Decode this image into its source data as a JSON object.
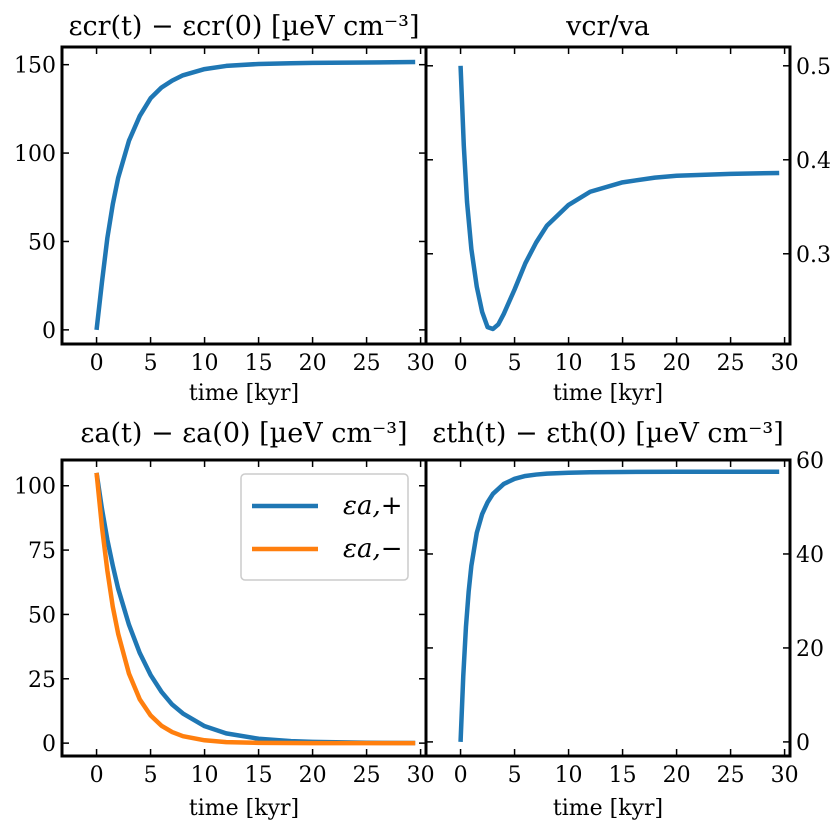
{
  "colors": {
    "blue": "#1f77b4",
    "orange": "#ff7f0e",
    "axis": "#000000"
  },
  "chart_data": [
    {
      "id": "p1",
      "type": "line",
      "title": "εcr(t) − εcr(0) [µeV cm⁻³]",
      "xlabel": "time [kyr]",
      "ylabel": "",
      "xlim": [
        -3.2,
        30.5
      ],
      "ylim": [
        -8,
        160
      ],
      "y_axis_side": "left",
      "xticks": [
        "0",
        "5",
        "10",
        "15",
        "20",
        "25",
        "30"
      ],
      "yticks": [
        "0",
        "50",
        "100",
        "150"
      ],
      "series": [
        {
          "color": "#1f77b4",
          "x": [
            0,
            0.5,
            1,
            1.5,
            2,
            3,
            4,
            5,
            6,
            7,
            8,
            10,
            12,
            15,
            18,
            20,
            25,
            29.5
          ],
          "y": [
            0,
            27,
            52,
            71,
            86,
            107,
            121,
            131,
            137,
            141,
            144,
            147.5,
            149.3,
            150.4,
            150.8,
            151,
            151.2,
            151.5
          ]
        }
      ]
    },
    {
      "id": "p2",
      "type": "line",
      "title": "vcr/va",
      "xlabel": "time [kyr]",
      "ylabel": "",
      "xlim": [
        -3.2,
        30.5
      ],
      "ylim": [
        0.204,
        0.52
      ],
      "y_axis_side": "right",
      "xticks": [
        "0",
        "5",
        "10",
        "15",
        "20",
        "25",
        "30"
      ],
      "yticks": [
        "0.3",
        "0.4",
        "0.5"
      ],
      "series": [
        {
          "color": "#1f77b4",
          "x": [
            0,
            0.3,
            0.6,
            1,
            1.5,
            2,
            2.5,
            3,
            3.5,
            4,
            5,
            6,
            7,
            8,
            10,
            12,
            15,
            18,
            20,
            25,
            29.5
          ],
          "y": [
            0.5,
            0.415,
            0.355,
            0.305,
            0.265,
            0.238,
            0.222,
            0.22,
            0.225,
            0.236,
            0.262,
            0.29,
            0.312,
            0.33,
            0.352,
            0.366,
            0.376,
            0.381,
            0.383,
            0.385,
            0.386
          ]
        }
      ]
    },
    {
      "id": "p3",
      "type": "line",
      "title": "εa(t) − εa(0) [µeV cm⁻³]",
      "xlabel": "time [kyr]",
      "ylabel": "",
      "xlim": [
        -3.2,
        30.5
      ],
      "ylim": [
        -5,
        110
      ],
      "y_axis_side": "left",
      "xticks": [
        "0",
        "5",
        "10",
        "15",
        "20",
        "25",
        "30"
      ],
      "yticks": [
        "0",
        "25",
        "50",
        "75",
        "100"
      ],
      "legend": {
        "position": "upper right",
        "entries": [
          "εa,+",
          "εa,−"
        ]
      },
      "series": [
        {
          "name": "εa,+",
          "color": "#1f77b4",
          "x": [
            0,
            0.5,
            1,
            1.5,
            2,
            3,
            4,
            5,
            6,
            7,
            8,
            10,
            12,
            15,
            18,
            20,
            25,
            29.5
          ],
          "y": [
            105,
            91,
            79,
            69,
            60,
            46,
            35,
            26.5,
            20,
            15,
            11.5,
            6.6,
            3.8,
            1.7,
            0.8,
            0.5,
            0.15,
            0.05
          ]
        },
        {
          "name": "εa,−",
          "color": "#ff7f0e",
          "x": [
            0,
            0.5,
            1,
            1.5,
            2,
            3,
            4,
            5,
            6,
            7,
            8,
            10,
            12,
            15,
            20,
            25,
            29.5
          ],
          "y": [
            105,
            84,
            67,
            53,
            42.5,
            27,
            17,
            10.8,
            6.8,
            4.3,
            2.7,
            1.1,
            0.4,
            0.1,
            0,
            0,
            0
          ]
        }
      ]
    },
    {
      "id": "p4",
      "type": "line",
      "title": "εth(t) − εth(0) [µeV cm⁻³]",
      "xlabel": "time [kyr]",
      "ylabel": "",
      "xlim": [
        -3.2,
        30.5
      ],
      "ylim": [
        -3,
        60
      ],
      "y_axis_side": "right",
      "xticks": [
        "0",
        "5",
        "10",
        "15",
        "20",
        "25",
        "30"
      ],
      "yticks": [
        "0",
        "20",
        "40",
        "60"
      ],
      "series": [
        {
          "color": "#1f77b4",
          "x": [
            0,
            0.25,
            0.5,
            0.75,
            1,
            1.5,
            2,
            2.5,
            3,
            4,
            5,
            6,
            7,
            8,
            10,
            12,
            15,
            20,
            25,
            29.5
          ],
          "y": [
            0,
            14,
            24.5,
            32,
            37.5,
            44.5,
            48.5,
            51,
            52.8,
            54.9,
            56,
            56.6,
            56.9,
            57.1,
            57.3,
            57.4,
            57.45,
            57.5,
            57.5,
            57.5
          ]
        }
      ]
    }
  ]
}
